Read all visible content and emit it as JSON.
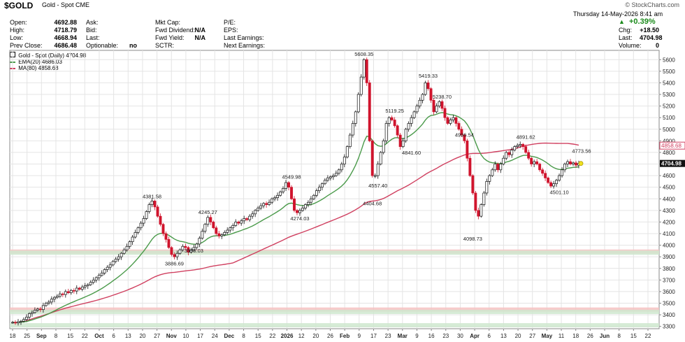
{
  "header": {
    "symbol": "$GOLD",
    "name": "Gold - Spot",
    "exchange": "CME",
    "brand": "© StockCharts.com",
    "date": "Thursday  14-May-2026  8:41 am",
    "change_pct": "+0.39%",
    "rows": [
      {
        "label": "Open:",
        "value": "4692.88"
      },
      {
        "label": "High:",
        "value": "4718.79"
      },
      {
        "label": "Low:",
        "value": "4668.94"
      },
      {
        "label": "Prev Close:",
        "value": "4686.48"
      }
    ],
    "col2": [
      {
        "label": "Ask:",
        "value": ""
      },
      {
        "label": "Bid:",
        "value": ""
      },
      {
        "label": "Last:",
        "value": ""
      },
      {
        "label": "Optionable:",
        "value": "no"
      }
    ],
    "col3": [
      {
        "label": "Mkt Cap:",
        "value": ""
      },
      {
        "label": "Fwd Dividend:",
        "value": "N/A"
      },
      {
        "label": "Fwd Yield:",
        "value": "N/A"
      },
      {
        "label": "SCTR:",
        "value": ""
      }
    ],
    "col4": [
      {
        "label": "P/E:",
        "value": ""
      },
      {
        "label": "EPS:",
        "value": ""
      },
      {
        "label": "Last Earnings:",
        "value": ""
      },
      {
        "label": "Next Earnings:",
        "value": ""
      }
    ],
    "col5": [
      {
        "label": "Chg:",
        "value": "+18.50"
      },
      {
        "label": "Last:",
        "value": "4704.98"
      },
      {
        "label": "Volume:",
        "value": "0"
      }
    ]
  },
  "legend": {
    "series": "Gold - Spot (Daily) 4704.98",
    "ema": "EMA(20) 4686.03",
    "ma": "MA(80) 4858.68"
  },
  "colors": {
    "up": "#111111",
    "down": "#d0142d",
    "ema": "#4a9a4a",
    "ma": "#d04060",
    "zone_red": "#f5c2c2",
    "zone_green": "#cfe8cf",
    "grid": "#e4e4e4"
  },
  "chart_data": {
    "type": "candlestick",
    "ylim": [
      3280,
      5680
    ],
    "yticks": [
      3300,
      3400,
      3500,
      3600,
      3700,
      3800,
      3900,
      4000,
      4100,
      4200,
      4300,
      4400,
      4500,
      4600,
      4700,
      4800,
      4900,
      5000,
      5100,
      5200,
      5300,
      5400,
      5500,
      5600
    ],
    "xticks": [
      "18",
      "25",
      "Sep",
      "8",
      "15",
      "22",
      "Oct",
      "6",
      "13",
      "20",
      "27",
      "Nov",
      "10",
      "17",
      "24",
      "Dec",
      "8",
      "15",
      "22",
      "2026",
      "12",
      "20",
      "26",
      "Feb",
      "9",
      "17",
      "23",
      "Mar",
      "9",
      "16",
      "23",
      "30",
      "Apr",
      "6",
      "13",
      "20",
      "27",
      "May",
      "11",
      "18",
      "26",
      "Jun",
      "8",
      "15",
      "22"
    ],
    "bold_xticks": [
      "Sep",
      "Oct",
      "Nov",
      "Dec",
      "2026",
      "Feb",
      "Mar",
      "Apr",
      "May",
      "Jun"
    ],
    "last_price": 4704.98,
    "ma80_last": 4858.68,
    "closes": [
      3335,
      3330,
      3340,
      3345,
      3360,
      3380,
      3410,
      3420,
      3440,
      3450,
      3445,
      3480,
      3500,
      3510,
      3535,
      3550,
      3560,
      3580,
      3575,
      3600,
      3590,
      3610,
      3605,
      3630,
      3620,
      3640,
      3650,
      3660,
      3680,
      3700,
      3720,
      3740,
      3760,
      3790,
      3810,
      3830,
      3860,
      3880,
      3900,
      3930,
      3960,
      3990,
      4030,
      4070,
      4110,
      4150,
      4190,
      4230,
      4290,
      4350,
      4381,
      4330,
      4250,
      4180,
      4100,
      4050,
      3980,
      3920,
      3900,
      3930,
      3960,
      3990,
      3980,
      3940,
      3960,
      3980,
      4010,
      4060,
      4120,
      4180,
      4240,
      4200,
      4150,
      4100,
      4080,
      4090,
      4110,
      4130,
      4150,
      4170,
      4200,
      4190,
      4210,
      4230,
      4220,
      4250,
      4270,
      4300,
      4320,
      4340,
      4360,
      4350,
      4370,
      4400,
      4410,
      4430,
      4460,
      4490,
      4540,
      4500,
      4400,
      4300,
      4280,
      4300,
      4320,
      4350,
      4370,
      4400,
      4430,
      4470,
      4500,
      4530,
      4560,
      4580,
      4590,
      4600,
      4620,
      4650,
      4700,
      4760,
      4850,
      4950,
      5050,
      5150,
      5300,
      5450,
      5600,
      5400,
      4900,
      4600,
      4600,
      4700,
      4800,
      4900,
      5050,
      5100,
      5080,
      5030,
      4950,
      4850,
      4900,
      5000,
      5050,
      5100,
      5150,
      5200,
      5250,
      5300,
      5400,
      5350,
      5250,
      5150,
      5200,
      5238,
      5180,
      5100,
      5050,
      5080,
      5100,
      5050,
      5000,
      4950,
      4900,
      4750,
      4600,
      4450,
      4300,
      4250,
      4350,
      4450,
      4550,
      4600,
      4650,
      4700,
      4650,
      4700,
      4750,
      4800,
      4780,
      4820,
      4850,
      4860,
      4870,
      4850,
      4800,
      4750,
      4700,
      4720,
      4700,
      4650,
      4620,
      4580,
      4540,
      4510,
      4530,
      4560,
      4600,
      4650,
      4700,
      4720,
      4700,
      4710,
      4690,
      4705
    ],
    "annotations": [
      {
        "label": "5608.35",
        "index": 126,
        "value": 5608.35,
        "pos": "above"
      },
      {
        "label": "5419.33",
        "index": 149,
        "value": 5419.33,
        "pos": "above"
      },
      {
        "label": "5238.70",
        "index": 154,
        "value": 5238.7,
        "pos": "above"
      },
      {
        "label": "5119.25",
        "index": 137,
        "value": 5119.25,
        "pos": "above"
      },
      {
        "label": "4996.54",
        "index": 162,
        "value": 4996.54,
        "pos": "below"
      },
      {
        "label": "4841.60",
        "index": 143,
        "value": 4841.6,
        "pos": "below"
      },
      {
        "label": "4891.62",
        "index": 184,
        "value": 4891.62,
        "pos": "above"
      },
      {
        "label": "4773.56",
        "index": 204,
        "value": 4773.56,
        "pos": "above"
      },
      {
        "label": "4501.10",
        "index": 196,
        "value": 4501.1,
        "pos": "below"
      },
      {
        "label": "4549.98",
        "index": 100,
        "value": 4549.98,
        "pos": "above"
      },
      {
        "label": "4557.40",
        "index": 131,
        "value": 4557.4,
        "pos": "below"
      },
      {
        "label": "4404.68",
        "index": 129,
        "value": 4404.68,
        "pos": "below"
      },
      {
        "label": "4381.58",
        "index": 50,
        "value": 4381.58,
        "pos": "above"
      },
      {
        "label": "4274.03",
        "index": 103,
        "value": 4274.03,
        "pos": "below"
      },
      {
        "label": "4245.27",
        "index": 70,
        "value": 4245.27,
        "pos": "above"
      },
      {
        "label": "4098.73",
        "index": 165,
        "value": 4098.73,
        "pos": "below"
      },
      {
        "label": "3998.03",
        "index": 65,
        "value": 3998.03,
        "pos": "below"
      },
      {
        "label": "3886.69",
        "index": 58,
        "value": 3886.69,
        "pos": "below"
      }
    ],
    "zones": [
      {
        "type": "resistance",
        "value": 3945
      },
      {
        "type": "resistance",
        "value": 3445
      },
      {
        "type": "support",
        "value": 3935
      },
      {
        "type": "support",
        "value": 3425
      },
      {
        "type": "support",
        "value": 3310
      }
    ]
  }
}
